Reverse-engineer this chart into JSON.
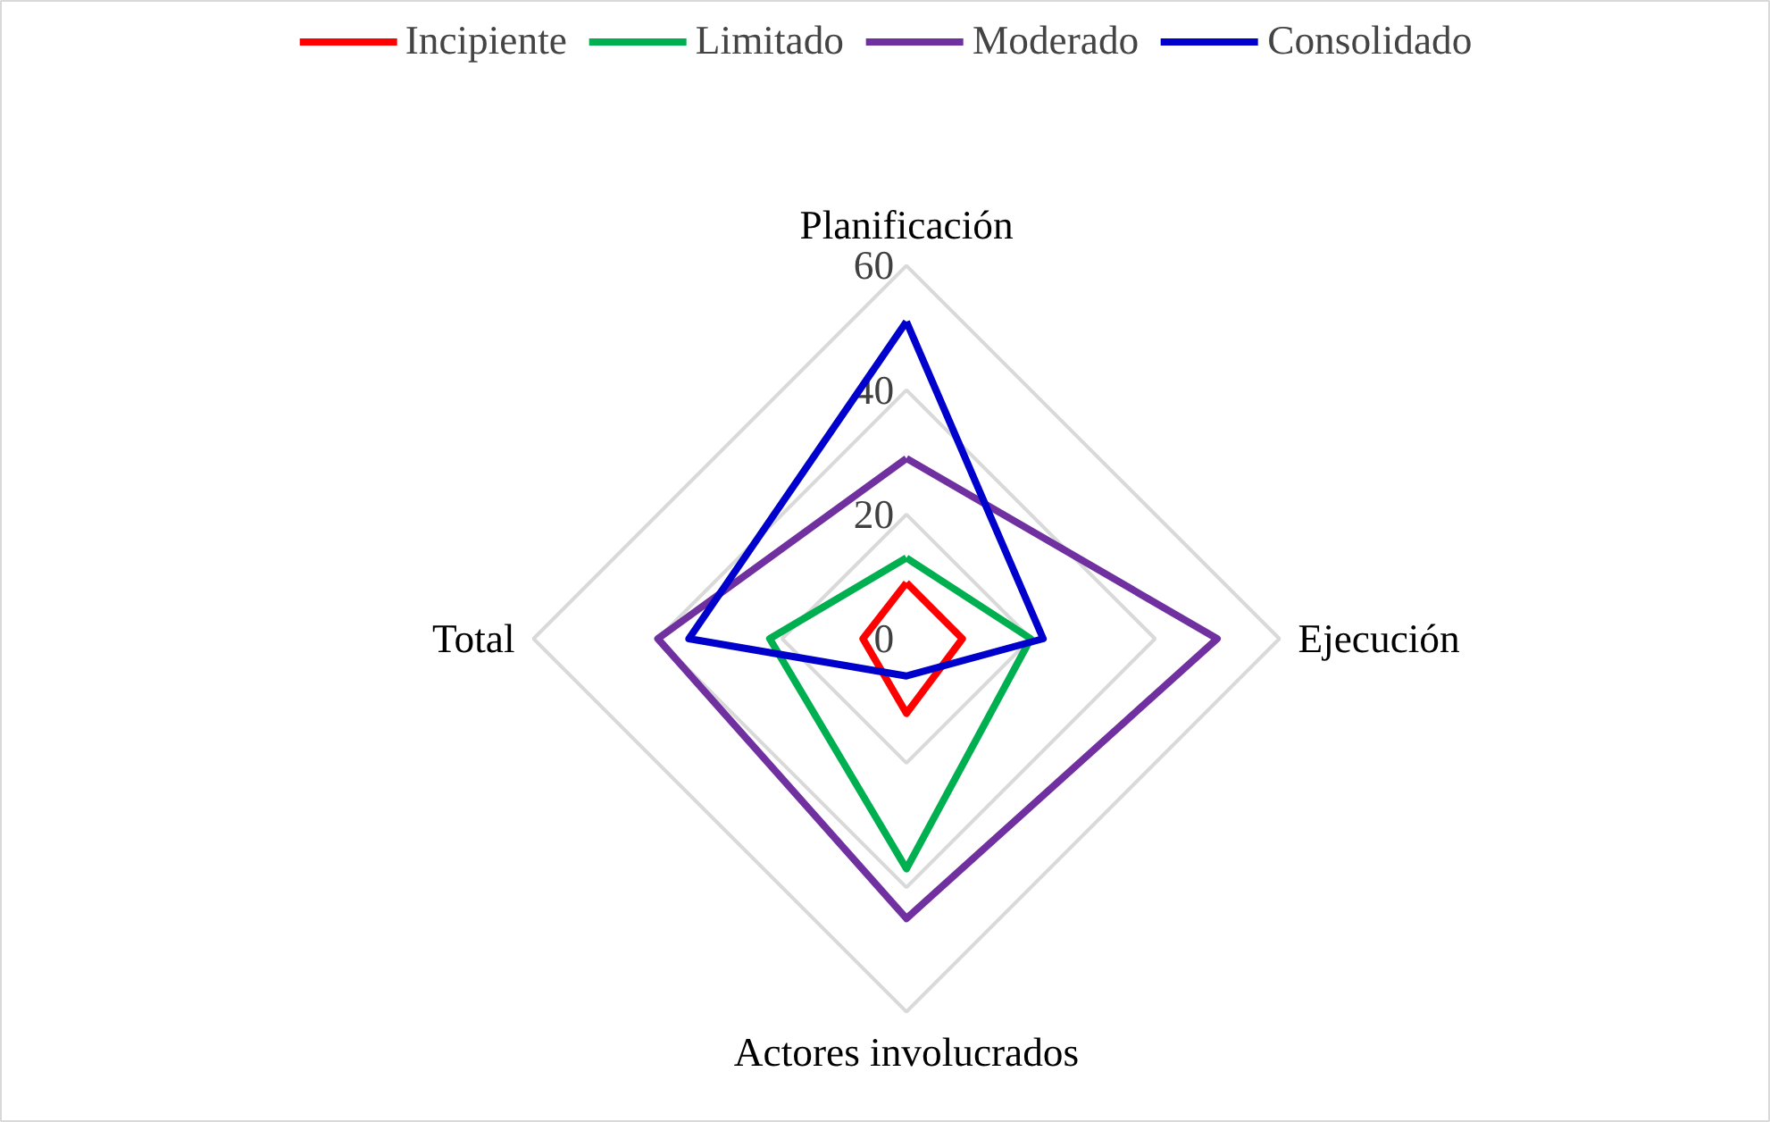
{
  "chart_data": {
    "type": "radar",
    "categories": [
      "Planificación",
      "Ejecución",
      "Actores involucrados",
      "Total"
    ],
    "series": [
      {
        "name": "Incipiente",
        "color": "#ff0000",
        "values": [
          9,
          9,
          12,
          7
        ]
      },
      {
        "name": "Limitado",
        "color": "#00b050",
        "values": [
          13,
          20,
          37,
          22
        ]
      },
      {
        "name": "Moderado",
        "color": "#7030a0",
        "values": [
          29,
          50,
          45,
          40
        ]
      },
      {
        "name": "Consolidado",
        "color": "#0000cc",
        "values": [
          51,
          22,
          6,
          35
        ]
      }
    ],
    "ylim": [
      0,
      60
    ],
    "yticks": [
      0,
      20,
      40,
      60
    ],
    "grid": true,
    "legend": "top",
    "line_style": "solid",
    "marker": "none"
  }
}
